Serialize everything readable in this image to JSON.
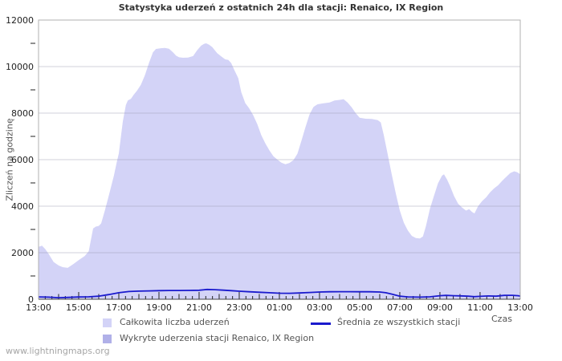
{
  "title": "Statystyka uderzeń z ostatnich 24h dla stacji: Renaico, IX Region",
  "watermark": "www.lightningmaps.org",
  "colors": {
    "area_total": "#d3d3f7",
    "area_station": "#b0b0e8",
    "avg_line": "#1a1acd",
    "grid": "#9a9ab0",
    "frame": "#b0b0b0",
    "axis": "#444444",
    "tick": "#222222",
    "tick_text": "#222222",
    "label_text": "#555555",
    "title_text": "#333333"
  },
  "chart_data": {
    "type": "area",
    "title": "Statystyka uderzeń z ostatnich 24h dla stacji: Renaico, IX Region",
    "xlabel": "Czas",
    "ylabel": "Zliczeń na godzinę",
    "ylim": [
      0,
      12000
    ],
    "xlim_hours": [
      0,
      24
    ],
    "grid": "horizontal",
    "legend_position": "bottom",
    "x_ticks": {
      "start_label_time": "13:00",
      "major": [
        {
          "t": 0,
          "label": "13:00"
        },
        {
          "t": 2,
          "label": "15:00"
        },
        {
          "t": 4,
          "label": "17:00"
        },
        {
          "t": 6,
          "label": "19:00"
        },
        {
          "t": 8,
          "label": "21:00"
        },
        {
          "t": 10,
          "label": "23:00"
        },
        {
          "t": 12,
          "label": "01:00"
        },
        {
          "t": 14,
          "label": "03:00"
        },
        {
          "t": 16,
          "label": "05:00"
        },
        {
          "t": 18,
          "label": "07:00"
        },
        {
          "t": 20,
          "label": "09:00"
        },
        {
          "t": 22,
          "label": "11:00"
        },
        {
          "t": 24,
          "label": "13:00"
        }
      ],
      "minor_interval_hours": 0.3333
    },
    "y_ticks": {
      "major": [
        0,
        2000,
        4000,
        6000,
        8000,
        10000,
        12000
      ],
      "minor": [
        1000,
        3000,
        5000,
        7000,
        9000,
        11000
      ]
    },
    "series": [
      {
        "name": "Całkowita liczba uderzeń",
        "type": "area",
        "color": "#d3d3f7",
        "points": [
          [
            0,
            2250
          ],
          [
            0.17,
            2300
          ],
          [
            0.33,
            2160
          ],
          [
            0.5,
            1950
          ],
          [
            0.75,
            1600
          ],
          [
            1,
            1450
          ],
          [
            1.2,
            1380
          ],
          [
            1.45,
            1350
          ],
          [
            1.75,
            1520
          ],
          [
            2,
            1680
          ],
          [
            2.3,
            1860
          ],
          [
            2.5,
            2060
          ],
          [
            2.62,
            2600
          ],
          [
            2.72,
            3040
          ],
          [
            2.85,
            3120
          ],
          [
            3,
            3150
          ],
          [
            3.12,
            3260
          ],
          [
            3.3,
            3800
          ],
          [
            3.5,
            4450
          ],
          [
            3.75,
            5300
          ],
          [
            3.9,
            5900
          ],
          [
            4,
            6270
          ],
          [
            4.2,
            7650
          ],
          [
            4.35,
            8350
          ],
          [
            4.45,
            8550
          ],
          [
            4.6,
            8610
          ],
          [
            4.75,
            8800
          ],
          [
            4.9,
            8960
          ],
          [
            5.1,
            9220
          ],
          [
            5.3,
            9630
          ],
          [
            5.5,
            10150
          ],
          [
            5.7,
            10610
          ],
          [
            5.85,
            10760
          ],
          [
            6.1,
            10790
          ],
          [
            6.3,
            10800
          ],
          [
            6.5,
            10770
          ],
          [
            6.7,
            10610
          ],
          [
            6.85,
            10470
          ],
          [
            7,
            10400
          ],
          [
            7.2,
            10380
          ],
          [
            7.45,
            10390
          ],
          [
            7.7,
            10450
          ],
          [
            7.9,
            10700
          ],
          [
            8.1,
            10900
          ],
          [
            8.25,
            10980
          ],
          [
            8.35,
            11000
          ],
          [
            8.5,
            10940
          ],
          [
            8.65,
            10840
          ],
          [
            8.9,
            10580
          ],
          [
            9.1,
            10440
          ],
          [
            9.3,
            10310
          ],
          [
            9.45,
            10290
          ],
          [
            9.6,
            10150
          ],
          [
            9.75,
            9860
          ],
          [
            9.95,
            9500
          ],
          [
            10.1,
            8900
          ],
          [
            10.3,
            8430
          ],
          [
            10.5,
            8200
          ],
          [
            10.7,
            7900
          ],
          [
            10.9,
            7520
          ],
          [
            11.1,
            7050
          ],
          [
            11.3,
            6700
          ],
          [
            11.5,
            6400
          ],
          [
            11.7,
            6150
          ],
          [
            11.9,
            6000
          ],
          [
            12.1,
            5870
          ],
          [
            12.3,
            5800
          ],
          [
            12.5,
            5860
          ],
          [
            12.7,
            5980
          ],
          [
            12.9,
            6260
          ],
          [
            13.1,
            6820
          ],
          [
            13.3,
            7400
          ],
          [
            13.5,
            7940
          ],
          [
            13.7,
            8270
          ],
          [
            13.9,
            8380
          ],
          [
            14.2,
            8420
          ],
          [
            14.5,
            8460
          ],
          [
            14.75,
            8540
          ],
          [
            15,
            8570
          ],
          [
            15.2,
            8600
          ],
          [
            15.4,
            8450
          ],
          [
            15.6,
            8250
          ],
          [
            15.8,
            8000
          ],
          [
            16,
            7800
          ],
          [
            16.3,
            7760
          ],
          [
            16.6,
            7750
          ],
          [
            16.9,
            7700
          ],
          [
            17.05,
            7600
          ],
          [
            17.2,
            7060
          ],
          [
            17.4,
            6210
          ],
          [
            17.6,
            5350
          ],
          [
            17.8,
            4550
          ],
          [
            18,
            3810
          ],
          [
            18.2,
            3290
          ],
          [
            18.4,
            2950
          ],
          [
            18.6,
            2720
          ],
          [
            18.8,
            2630
          ],
          [
            19,
            2610
          ],
          [
            19.15,
            2700
          ],
          [
            19.3,
            3140
          ],
          [
            19.5,
            3890
          ],
          [
            19.7,
            4440
          ],
          [
            19.9,
            4980
          ],
          [
            20.1,
            5310
          ],
          [
            20.2,
            5370
          ],
          [
            20.35,
            5150
          ],
          [
            20.5,
            4870
          ],
          [
            20.7,
            4440
          ],
          [
            20.9,
            4110
          ],
          [
            21.1,
            3940
          ],
          [
            21.3,
            3810
          ],
          [
            21.45,
            3870
          ],
          [
            21.6,
            3750
          ],
          [
            21.72,
            3690
          ],
          [
            21.9,
            4000
          ],
          [
            22.1,
            4220
          ],
          [
            22.3,
            4380
          ],
          [
            22.5,
            4600
          ],
          [
            22.7,
            4770
          ],
          [
            22.9,
            4900
          ],
          [
            23.1,
            5090
          ],
          [
            23.3,
            5260
          ],
          [
            23.5,
            5420
          ],
          [
            23.7,
            5500
          ],
          [
            23.85,
            5460
          ],
          [
            24,
            5370
          ]
        ]
      },
      {
        "name": "Wykryte uderzenia stacji Renaico, IX Region",
        "type": "area",
        "color": "#b0b0e8",
        "points": [
          [
            0,
            0
          ],
          [
            24,
            0
          ]
        ]
      },
      {
        "name": "Średnia ze wszystkich stacji",
        "type": "line",
        "color": "#1a1acd",
        "points": [
          [
            0,
            100
          ],
          [
            0.5,
            90
          ],
          [
            1,
            65
          ],
          [
            1.5,
            80
          ],
          [
            2,
            95
          ],
          [
            2.5,
            105
          ],
          [
            3,
            130
          ],
          [
            3.5,
            200
          ],
          [
            4,
            280
          ],
          [
            4.5,
            330
          ],
          [
            5,
            350
          ],
          [
            5.5,
            360
          ],
          [
            6,
            370
          ],
          [
            6.5,
            375
          ],
          [
            7,
            375
          ],
          [
            7.5,
            380
          ],
          [
            8,
            385
          ],
          [
            8.4,
            420
          ],
          [
            8.8,
            410
          ],
          [
            9.2,
            390
          ],
          [
            9.6,
            370
          ],
          [
            10,
            345
          ],
          [
            10.5,
            320
          ],
          [
            11,
            300
          ],
          [
            11.5,
            280
          ],
          [
            12,
            260
          ],
          [
            12.5,
            255
          ],
          [
            13,
            270
          ],
          [
            13.5,
            290
          ],
          [
            14,
            310
          ],
          [
            14.5,
            320
          ],
          [
            15,
            325
          ],
          [
            15.5,
            325
          ],
          [
            16,
            320
          ],
          [
            16.5,
            320
          ],
          [
            17,
            310
          ],
          [
            17.3,
            280
          ],
          [
            17.6,
            220
          ],
          [
            18,
            130
          ],
          [
            18.4,
            100
          ],
          [
            19,
            90
          ],
          [
            19.5,
            105
          ],
          [
            20,
            150
          ],
          [
            20.3,
            165
          ],
          [
            20.7,
            150
          ],
          [
            21,
            145
          ],
          [
            21.4,
            130
          ],
          [
            21.7,
            110
          ],
          [
            22,
            125
          ],
          [
            22.4,
            140
          ],
          [
            22.8,
            130
          ],
          [
            23.2,
            165
          ],
          [
            23.6,
            170
          ],
          [
            23.9,
            150
          ],
          [
            24,
            135
          ]
        ]
      }
    ]
  },
  "legend": {
    "items": [
      {
        "label": "Całkowita liczba uderzeń"
      },
      {
        "label": "Wykryte uderzenia stacji Renaico, IX Region"
      },
      {
        "label": "Średnia ze wszystkich stacji"
      }
    ]
  }
}
